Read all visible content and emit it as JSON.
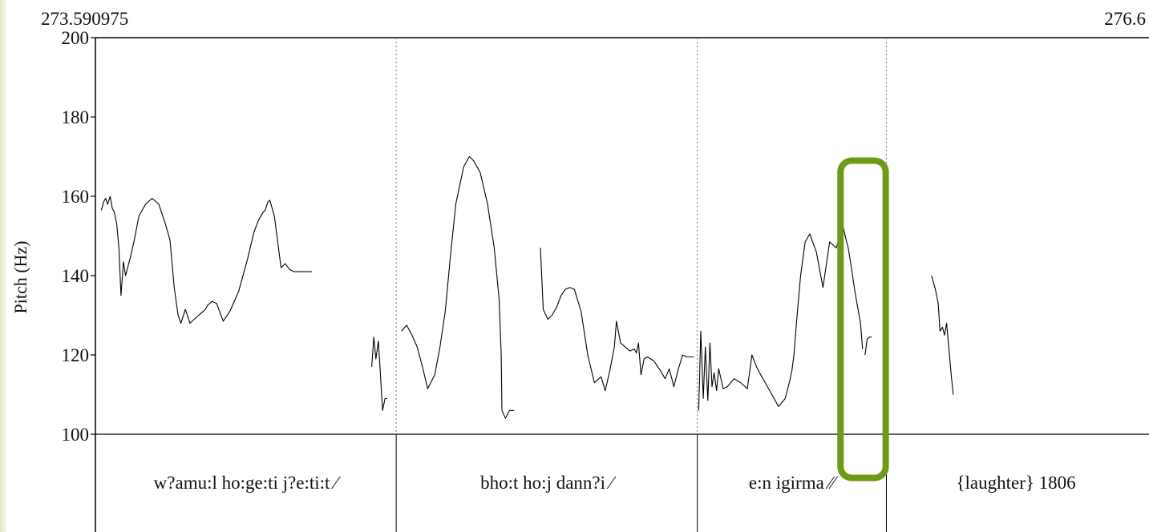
{
  "header": {
    "title": "",
    "time_start": "273.590975",
    "time_end": "276.6"
  },
  "chart_data": {
    "type": "line",
    "title": "",
    "xlabel": "",
    "ylabel": "Pitch (Hz)",
    "xlim": [
      273.590975,
      276.6
    ],
    "ylim": [
      100,
      200
    ],
    "yticks": [
      "100",
      "120",
      "140",
      "160",
      "180",
      "200"
    ],
    "grid": false,
    "boundaries": [
      274.45,
      275.31,
      275.85
    ],
    "series": [
      {
        "name": "",
        "x": [
          273.608,
          273.614,
          273.62,
          273.626,
          273.633,
          273.639,
          273.645,
          273.652,
          273.658,
          273.664,
          273.671,
          273.677,
          273.683,
          273.692,
          273.702,
          273.715,
          273.734,
          273.753,
          273.772,
          273.791,
          273.804,
          273.816,
          273.827,
          273.835,
          273.848,
          273.861,
          273.873,
          273.886,
          273.899,
          273.905,
          273.911,
          273.918,
          273.924,
          273.937,
          273.956,
          273.975,
          274.0,
          274.025,
          274.044,
          274.057,
          274.07,
          274.076,
          274.083,
          274.089,
          274.102,
          274.121,
          274.133,
          274.146,
          274.159,
          274.171,
          274.184,
          274.197,
          274.203,
          274.209
        ],
        "y": [
          156.5,
          158.5,
          159.5,
          158.0,
          160.0,
          157.0,
          156.0,
          153.0,
          147.0,
          135.0,
          143.5,
          140.0,
          142.0,
          145.0,
          149.0,
          155.0,
          158.0,
          159.5,
          158.0,
          153.0,
          149.0,
          137.0,
          130.0,
          128.0,
          131.5,
          128.0,
          129.0,
          130.0,
          131.0,
          131.5,
          132.5,
          133.0,
          133.5,
          133.0,
          128.5,
          131.0,
          136.0,
          144.0,
          151.0,
          154.0,
          156.0,
          156.5,
          158.5,
          159.0,
          155.0,
          142.0,
          143.0,
          141.5,
          141.0,
          141.0,
          141.0,
          141.0,
          141.0,
          141.0
        ]
      },
      {
        "name": "",
        "x": [
          274.38,
          274.386,
          274.392,
          274.399,
          274.405,
          274.411,
          274.418,
          274.424
        ],
        "y": [
          117.0,
          124.5,
          119.0,
          123.5,
          115.0,
          106.0,
          109.0,
          109.0
        ]
      },
      {
        "name": "",
        "x": [
          274.465,
          274.48,
          274.495,
          274.51,
          274.525,
          274.54,
          274.56,
          274.575,
          274.59,
          274.605,
          274.62,
          274.632,
          274.643,
          274.659,
          274.671,
          274.69,
          274.711,
          274.73,
          274.744,
          274.75,
          274.752,
          274.762,
          274.77,
          274.774,
          274.787
        ],
        "y": [
          126.0,
          127.5,
          125.0,
          122.0,
          117.0,
          111.5,
          115.0,
          122.0,
          131.0,
          145.0,
          158.0,
          163.0,
          167.5,
          170.0,
          169.0,
          166.0,
          158.0,
          147.0,
          134.0,
          120.0,
          106.0,
          104.0,
          105.5,
          106.0,
          106.0
        ]
      },
      {
        "name": "",
        "x": [
          274.862,
          274.87,
          274.883,
          274.895,
          274.908,
          274.921,
          274.933,
          274.946,
          274.959,
          274.978,
          274.997,
          275.016,
          275.035,
          275.047,
          275.06,
          275.073,
          275.079,
          275.091,
          275.104,
          275.117,
          275.13,
          275.136,
          275.142,
          275.149,
          275.158,
          275.167,
          275.186,
          275.205,
          275.218,
          275.23,
          275.243,
          275.256,
          275.268,
          275.281,
          275.294,
          275.3
        ],
        "y": [
          147.0,
          131.5,
          129.0,
          130.0,
          132.0,
          135.0,
          136.5,
          137.0,
          136.5,
          131.0,
          120.0,
          113.0,
          114.5,
          111.0,
          116.0,
          122.0,
          128.5,
          123.0,
          122.0,
          121.0,
          121.5,
          120.5,
          123.0,
          115.0,
          119.0,
          119.5,
          118.5,
          116.0,
          114.0,
          116.5,
          112.0,
          116.5,
          120.0,
          119.5,
          119.5,
          119.5
        ]
      },
      {
        "name": "",
        "x": [
          275.314,
          275.32,
          275.327,
          275.333,
          275.34,
          275.346,
          275.352,
          275.358,
          275.365,
          275.371,
          275.384,
          275.396,
          275.415,
          275.434,
          275.453,
          275.466,
          275.479,
          275.491,
          275.504,
          275.523,
          275.542,
          275.561,
          275.574,
          275.58,
          275.586,
          275.593,
          275.605,
          275.618,
          275.631,
          275.65,
          275.669,
          275.688,
          275.707,
          275.726,
          275.735,
          275.741,
          275.75,
          275.76,
          275.776,
          275.782
        ],
        "y": [
          106.0,
          126.0,
          109.0,
          122.0,
          108.5,
          123.0,
          112.0,
          115.5,
          111.0,
          116.5,
          111.5,
          112.0,
          114.0,
          113.0,
          111.5,
          120.0,
          117.0,
          115.0,
          113.0,
          110.0,
          107.0,
          109.0,
          113.5,
          116.0,
          120.0,
          128.0,
          140.0,
          148.5,
          150.5,
          146.0,
          137.0,
          148.5,
          147.0,
          152.5,
          149.0,
          147.0,
          142.0,
          136.0,
          128.0,
          121.5
        ]
      },
      {
        "name": "",
        "x": [
          275.789,
          275.795,
          275.802,
          275.808
        ],
        "y": [
          120.0,
          124.0,
          124.5,
          124.5
        ]
      },
      {
        "name": "",
        "x": [
          275.979,
          275.99,
          275.998,
          276.003,
          276.01,
          276.016,
          276.022,
          276.029,
          276.035,
          276.041
        ],
        "y": [
          140.0,
          136.5,
          133.0,
          126.0,
          127.0,
          125.0,
          128.0,
          121.0,
          115.0,
          110.0
        ]
      }
    ],
    "annotations": [
      {
        "type": "highlight-box",
        "x_start": 275.719,
        "x_end": 275.848,
        "y_start": 89,
        "y_end": 169,
        "color": "#6e9a18"
      }
    ]
  },
  "tiers": [
    {
      "label": "w?amu:l ho:ge:ti j?e:ti:t ⁄",
      "x_center": 274.02
    },
    {
      "label": "bho:t ho:j dann?i ⁄",
      "x_center": 274.88
    },
    {
      "label": "e:n igirma ⁄⁄",
      "x_center": 275.58
    },
    {
      "label": "{laughter} 1806",
      "x_center": 276.22
    }
  ],
  "colors": {
    "line": "#000000",
    "highlight": "#6e9a18",
    "axis": "#000000"
  }
}
